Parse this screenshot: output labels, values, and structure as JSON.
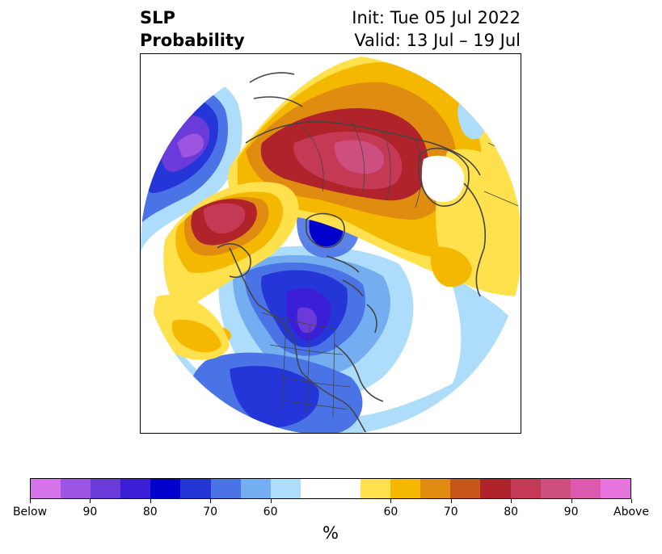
{
  "title": {
    "left_line1": "SLP",
    "left_line2": "Probability",
    "right_line1": "Init: Tue 05 Jul 2022",
    "right_line2": "Valid: 13 Jul – 19 Jul"
  },
  "colorbar": {
    "unit": "%",
    "colors": [
      "#d573e8",
      "#9b55e0",
      "#6a3bd9",
      "#3a1fd6",
      "#0000cc",
      "#2536d9",
      "#4a74e6",
      "#74aef0",
      "#aedcfb",
      "#ffffff",
      "#ffffff",
      "#ffe14d",
      "#f5b800",
      "#e08c10",
      "#c8561a",
      "#b0232a",
      "#c43a55",
      "#cc4f80",
      "#dc5aae",
      "#e773dc"
    ],
    "labels": [
      {
        "text": "Below",
        "index": 0
      },
      {
        "text": "90",
        "index": 2
      },
      {
        "text": "80",
        "index": 4
      },
      {
        "text": "70",
        "index": 6
      },
      {
        "text": "60",
        "index": 8
      },
      {
        "text": "60",
        "index": 12
      },
      {
        "text": "70",
        "index": 14
      },
      {
        "text": "80",
        "index": 16
      },
      {
        "text": "90",
        "index": 18
      },
      {
        "text": "Above",
        "index": 20
      }
    ]
  },
  "map": {
    "projection": "north-polar-stereographic",
    "colors": {
      "below_deep": "#6a3bd9",
      "below_strong": "#0000cc",
      "below_mid": "#2536d9",
      "below_light": "#4a74e6",
      "below_faint": "#aedcfb",
      "above_faint": "#ffe14d",
      "above_light": "#f5b800",
      "above_mid": "#e08c10",
      "above_strong": "#b0232a",
      "above_deep": "#c43a55",
      "above_extreme": "#cc4f80",
      "coast": "#444444"
    }
  }
}
